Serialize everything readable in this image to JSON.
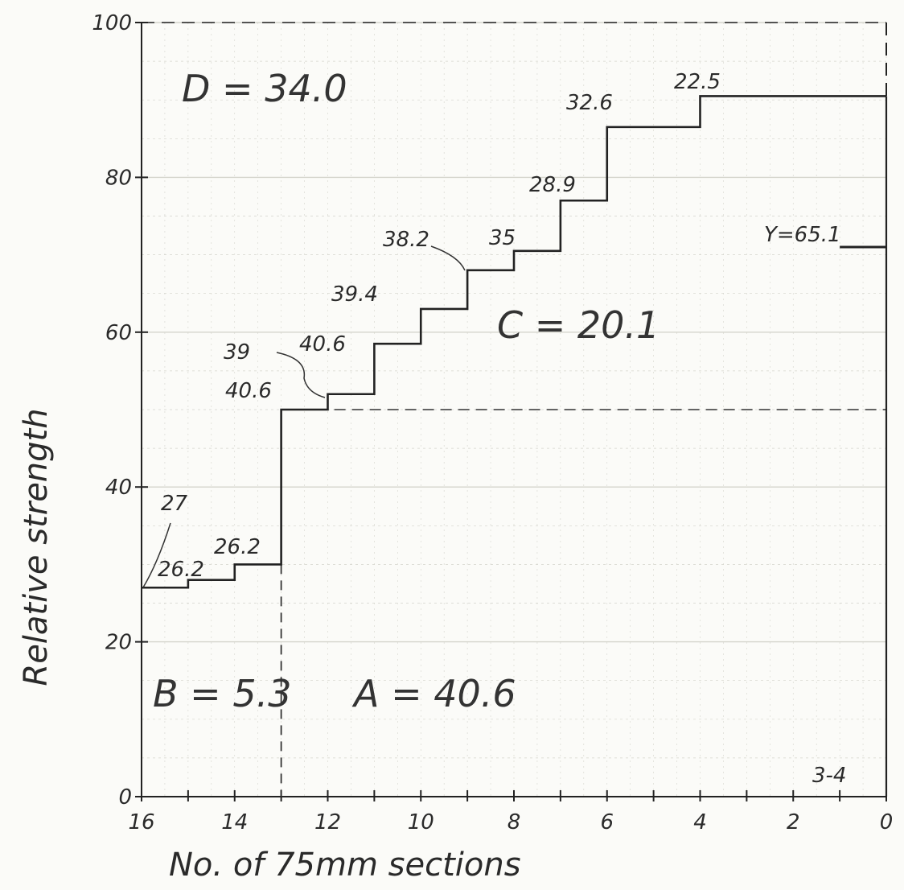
{
  "chart_data": {
    "type": "line",
    "style": "step",
    "xlabel": "No. of 75mm sections",
    "ylabel": "Relative strength",
    "xlim": [
      16,
      0
    ],
    "ylim": [
      0,
      100
    ],
    "x_ticks": [
      "16",
      "14",
      "12",
      "10",
      "8",
      "6",
      "4",
      "2",
      "0"
    ],
    "y_ticks": [
      "0",
      "20",
      "40",
      "60",
      "80",
      "100"
    ],
    "grid": true,
    "legend": "none",
    "series": [
      {
        "x": [
          16,
          15,
          14,
          13,
          12,
          11,
          10,
          9,
          8,
          7,
          6,
          4,
          0
        ],
        "y": [
          27.0,
          28.0,
          30.0,
          50.0,
          52.0,
          58.5,
          63.0,
          68.0,
          70.5,
          77.0,
          86.5,
          90.5,
          90.5
        ]
      }
    ],
    "step_labels": [
      "27",
      "26.2",
      "26.2",
      "40.6",
      "39",
      "40.6",
      "39.4",
      "38.2",
      "35",
      "28.9",
      "32.6",
      "22.5"
    ],
    "regions": {
      "A": "A = 40.6",
      "B": "B = 5.3",
      "C": "C = 20.1",
      "D": "D = 34.0"
    },
    "reference_label": "Y=65.1",
    "reference_y": 71,
    "figure_id": "3-4",
    "dashed_lines": {
      "horizontal_y": 50,
      "vertical_x": 13
    },
    "colors": {
      "line": "#222222",
      "grid": "#d4d4cc",
      "background": "#fbfbf8"
    }
  }
}
